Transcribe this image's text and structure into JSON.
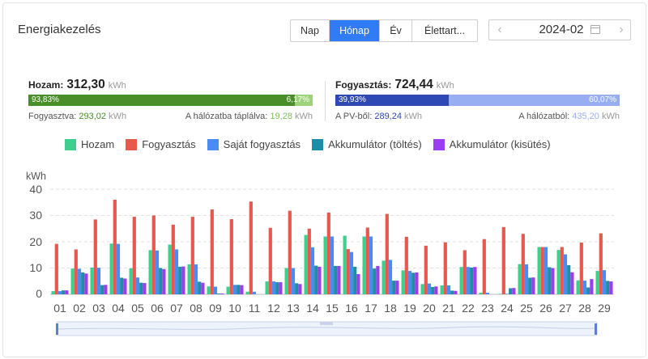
{
  "title": "Energiakezelés",
  "tabs": [
    {
      "label": "Nap",
      "active": false
    },
    {
      "label": "Hónap",
      "active": true
    },
    {
      "label": "Év",
      "active": false
    },
    {
      "label": "Élettart...",
      "active": false
    }
  ],
  "date_picker": {
    "value": "2024-02",
    "prev_icon": "chevron-left-icon",
    "next_icon": "chevron-right-icon",
    "calendar_icon": "calendar-icon"
  },
  "yield": {
    "label": "Hozam:",
    "value": "312,30",
    "unit": "kWh",
    "bar_left_pct": "93,83%",
    "bar_right_pct": "6,17%",
    "bar_fraction": 0.9383,
    "consumed_label": "Fogyasztva:",
    "consumed_value": "293,02",
    "consumed_unit": "kWh",
    "fed_label": "A hálózatba táplálva:",
    "fed_value": "19,28",
    "fed_unit": "kWh",
    "colors": {
      "main": "#4a8e2a",
      "rest": "#9fd37b"
    }
  },
  "consumption": {
    "label": "Fogyasztás:",
    "value": "724,44",
    "unit": "kWh",
    "bar_left_pct": "39,93%",
    "bar_right_pct": "60,07%",
    "bar_fraction": 0.3993,
    "pv_label": "A PV-ből:",
    "pv_value": "289,24",
    "pv_unit": "kWh",
    "grid_label": "A hálózatból:",
    "grid_value": "435,20",
    "grid_unit": "kWh",
    "colors": {
      "main": "#2e48b4",
      "rest": "#97aef3"
    }
  },
  "chart_data": {
    "type": "bar",
    "ylabel": "kWh",
    "ylim": [
      0,
      40
    ],
    "yticks": [
      "0",
      "10",
      "20",
      "30",
      "40"
    ],
    "grid": true,
    "legend_position": "top",
    "categories": [
      "01",
      "02",
      "03",
      "04",
      "05",
      "06",
      "07",
      "08",
      "09",
      "10",
      "11",
      "12",
      "13",
      "14",
      "15",
      "16",
      "17",
      "18",
      "19",
      "20",
      "21",
      "22",
      "23",
      "24",
      "25",
      "26",
      "27",
      "28",
      "29"
    ],
    "series": [
      {
        "name": "Hozam",
        "color": "#3ecf8e",
        "values": [
          1.2,
          9.8,
          10.2,
          19.3,
          9.9,
          16.8,
          18.9,
          11.4,
          3.0,
          2.9,
          1.0,
          4.9,
          10.0,
          22.6,
          22.0,
          22.3,
          22.0,
          12.8,
          9.1,
          3.9,
          3.4,
          10.4,
          0.6,
          0.2,
          11.5,
          18.0,
          16.9,
          5.3,
          8.9
        ]
      },
      {
        "name": "Fogyasztás",
        "color": "#e8594b",
        "values": [
          19.2,
          17.1,
          28.5,
          36.0,
          29.5,
          30.0,
          26.5,
          29.5,
          32.3,
          28.6,
          35.3,
          25.3,
          31.8,
          25.0,
          31.1,
          17.2,
          25.4,
          30.6,
          21.9,
          18.5,
          19.8,
          16.8,
          21.0,
          25.6,
          23.0,
          18.0,
          18.0,
          19.7,
          23.2
        ]
      },
      {
        "name": "Saját fogyasztás",
        "color": "#4a8bf5",
        "values": [
          1.2,
          9.7,
          10.1,
          19.2,
          6.4,
          16.7,
          17.1,
          11.4,
          2.9,
          3.6,
          1.0,
          4.9,
          10.0,
          17.9,
          22.0,
          16.1,
          22.0,
          13.1,
          8.9,
          4.1,
          3.4,
          10.4,
          0.6,
          0.2,
          11.4,
          18.0,
          15.2,
          5.2,
          9.2
        ]
      },
      {
        "name": "Akkumulátor (töltés)",
        "color": "#1d8ea8",
        "values": [
          1.5,
          8.3,
          3.5,
          6.3,
          4.4,
          10.0,
          10.5,
          4.8,
          0.3,
          3.6,
          0,
          4.6,
          4.2,
          10.9,
          10.8,
          10.5,
          9.8,
          5.2,
          8.2,
          2.8,
          1.4,
          10.2,
          0,
          2.3,
          6.3,
          10.3,
          11.1,
          2.6,
          5.1
        ]
      },
      {
        "name": "Akkumulátor (kisütés)",
        "color": "#9b3df2",
        "values": [
          1.5,
          7.9,
          3.6,
          6.0,
          4.3,
          9.6,
          10.6,
          4.4,
          0.3,
          3.5,
          0,
          4.6,
          3.9,
          10.5,
          10.8,
          7.7,
          10.8,
          5.2,
          8.3,
          3.0,
          1.3,
          10.4,
          0,
          2.4,
          6.4,
          10.0,
          8.4,
          5.8,
          4.9
        ]
      }
    ]
  }
}
